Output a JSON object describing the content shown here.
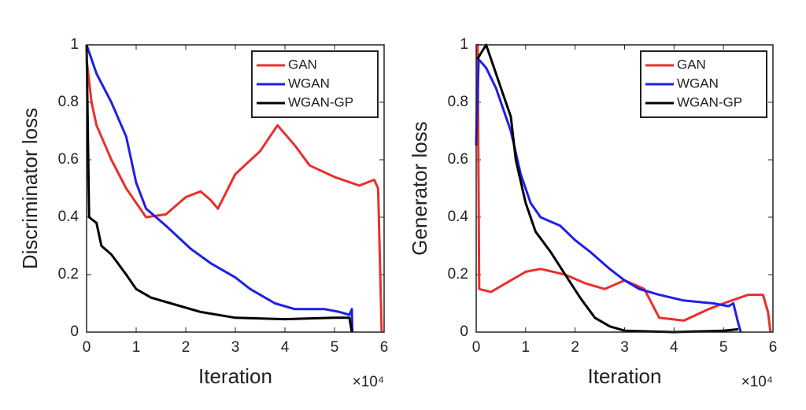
{
  "chart_data": [
    {
      "type": "line",
      "xlabel": "Iteration",
      "ylabel": "Discriminator loss",
      "x_multiplier": "×10⁴",
      "xlim": [
        0,
        6
      ],
      "ylim": [
        0,
        1
      ],
      "xticks": [
        0,
        1,
        2,
        3,
        4,
        5,
        6
      ],
      "yticks": [
        0,
        0.2,
        0.4,
        0.6,
        0.8,
        1
      ],
      "legend": "upper right",
      "series": [
        {
          "name": "GAN",
          "color": "#e8302a",
          "x": [
            0,
            0.1,
            0.2,
            0.3,
            0.5,
            0.8,
            1.0,
            1.2,
            1.6,
            2.0,
            2.3,
            2.5,
            2.65,
            3.0,
            3.5,
            3.85,
            4.2,
            4.5,
            5.0,
            5.5,
            5.8,
            5.88,
            5.95
          ],
          "values": [
            0.95,
            0.8,
            0.72,
            0.68,
            0.6,
            0.5,
            0.45,
            0.4,
            0.41,
            0.47,
            0.49,
            0.46,
            0.43,
            0.55,
            0.63,
            0.72,
            0.65,
            0.58,
            0.54,
            0.51,
            0.53,
            0.5,
            0
          ]
        },
        {
          "name": "WGAN",
          "color": "#1f1fe6",
          "x": [
            0,
            0.2,
            0.5,
            0.8,
            1.0,
            1.2,
            1.6,
            2.1,
            2.5,
            3.0,
            3.3,
            3.8,
            4.2,
            4.8,
            5.1,
            5.3,
            5.35,
            5.36
          ],
          "values": [
            1,
            0.9,
            0.8,
            0.68,
            0.52,
            0.43,
            0.37,
            0.29,
            0.24,
            0.19,
            0.15,
            0.1,
            0.08,
            0.08,
            0.07,
            0.06,
            0.08,
            0
          ]
        },
        {
          "name": "WGAN-GP",
          "color": "#000000",
          "x": [
            0,
            0.05,
            0.2,
            0.3,
            0.5,
            0.8,
            1.0,
            1.3,
            1.7,
            2.3,
            3.0,
            4.0,
            5.0,
            5.3,
            5.35
          ],
          "values": [
            1,
            0.4,
            0.38,
            0.3,
            0.27,
            0.2,
            0.15,
            0.12,
            0.1,
            0.07,
            0.05,
            0.045,
            0.05,
            0.05,
            0
          ]
        }
      ]
    },
    {
      "type": "line",
      "xlabel": "Iteration",
      "ylabel": "Generator loss",
      "x_multiplier": "×10⁴",
      "xlim": [
        0,
        6
      ],
      "ylim": [
        0,
        1
      ],
      "xticks": [
        0,
        1,
        2,
        3,
        4,
        5,
        6
      ],
      "yticks": [
        0,
        0.2,
        0.4,
        0.6,
        0.8,
        1
      ],
      "legend": "upper right",
      "series": [
        {
          "name": "GAN",
          "color": "#e8302a",
          "x": [
            0,
            0.03,
            0.06,
            0.3,
            0.6,
            1.0,
            1.3,
            1.8,
            2.2,
            2.6,
            3.0,
            3.4,
            3.7,
            4.2,
            4.7,
            5.0,
            5.5,
            5.8,
            5.9,
            5.95
          ],
          "values": [
            0.65,
            1,
            0.15,
            0.14,
            0.17,
            0.21,
            0.22,
            0.2,
            0.17,
            0.15,
            0.18,
            0.15,
            0.05,
            0.04,
            0.08,
            0.1,
            0.13,
            0.13,
            0.07,
            0
          ]
        },
        {
          "name": "WGAN",
          "color": "#1f1fe6",
          "x": [
            0,
            0.05,
            0.2,
            0.4,
            0.7,
            0.9,
            1.1,
            1.3,
            1.7,
            2.0,
            2.3,
            2.7,
            3.0,
            3.3,
            3.7,
            4.2,
            4.8,
            5.1,
            5.2,
            5.3,
            5.35
          ],
          "values": [
            0.65,
            0.95,
            0.92,
            0.85,
            0.7,
            0.55,
            0.45,
            0.4,
            0.37,
            0.32,
            0.28,
            0.22,
            0.18,
            0.15,
            0.13,
            0.11,
            0.1,
            0.09,
            0.1,
            0.03,
            0
          ]
        },
        {
          "name": "WGAN-GP",
          "color": "#000000",
          "x": [
            0.02,
            0.2,
            0.3,
            0.5,
            0.7,
            0.8,
            1.0,
            1.2,
            1.5,
            1.8,
            2.1,
            2.4,
            2.7,
            3.0,
            4.0,
            5.0,
            5.3
          ],
          "values": [
            0.95,
            1,
            0.95,
            0.85,
            0.75,
            0.6,
            0.45,
            0.35,
            0.28,
            0.2,
            0.12,
            0.05,
            0.02,
            0.005,
            0,
            0.005,
            0.01
          ]
        }
      ]
    }
  ]
}
